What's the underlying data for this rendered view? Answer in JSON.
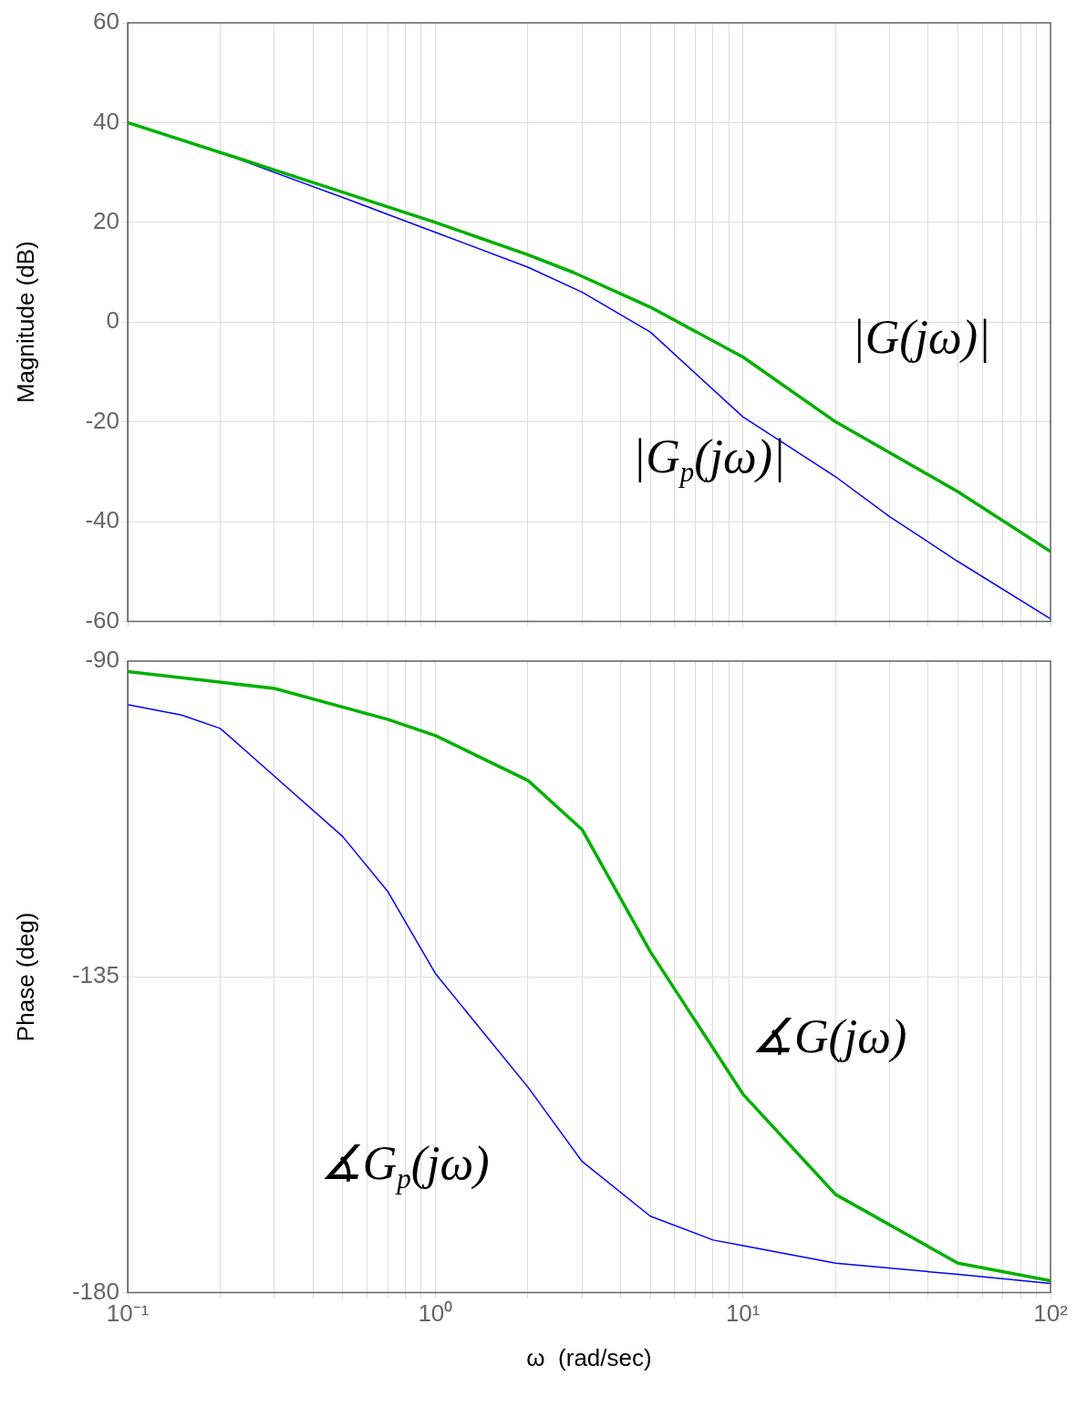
{
  "chart_data": [
    {
      "type": "line",
      "ylabel": "Magnitude (dB)",
      "log": "x",
      "grid": true,
      "tick_labels": "y",
      "xlim": [
        0.1,
        100
      ],
      "ylim": [
        -60,
        60
      ],
      "yticks": [
        -60,
        -40,
        -20,
        0,
        20,
        40,
        60
      ],
      "xticks": [
        {
          "value": 0.1,
          "label": null
        },
        {
          "value": 0.2,
          "label": null
        },
        {
          "value": 0.3,
          "label": null
        },
        {
          "value": 0.4,
          "label": null
        },
        {
          "value": 0.5,
          "label": null
        },
        {
          "value": 0.6,
          "label": null
        },
        {
          "value": 0.7,
          "label": null
        },
        {
          "value": 0.8,
          "label": null
        },
        {
          "value": 0.9,
          "label": null
        },
        {
          "value": 1,
          "label": null
        },
        {
          "value": 2,
          "label": null
        },
        {
          "value": 3,
          "label": null
        },
        {
          "value": 4,
          "label": null
        },
        {
          "value": 5,
          "label": null
        },
        {
          "value": 6,
          "label": null
        },
        {
          "value": 7,
          "label": null
        },
        {
          "value": 8,
          "label": null
        },
        {
          "value": 9,
          "label": null
        },
        {
          "value": 10,
          "label": null
        },
        {
          "value": 20,
          "label": null
        },
        {
          "value": 30,
          "label": null
        },
        {
          "value": 40,
          "label": null
        },
        {
          "value": 50,
          "label": null
        },
        {
          "value": 60,
          "label": null
        },
        {
          "value": 70,
          "label": null
        },
        {
          "value": 80,
          "label": null
        },
        {
          "value": 90,
          "label": null
        },
        {
          "value": 100,
          "label": null
        }
      ],
      "series": [
        {
          "color": "#00b000",
          "x": [
            0.1,
            0.3,
            1,
            2,
            2.8,
            5,
            10,
            20,
            50,
            100
          ],
          "values": [
            40,
            30.5,
            20,
            13.5,
            10,
            3,
            -7,
            -20,
            -34,
            -46
          ]
        },
        {
          "color": "#0000ff",
          "x": [
            0.1,
            0.2,
            0.3,
            0.5,
            1,
            2,
            3,
            5,
            10,
            20,
            30,
            50,
            100
          ],
          "values": [
            40,
            34,
            30,
            25,
            18,
            11,
            6,
            -2,
            -19,
            -31,
            -39,
            -48,
            -59.5
          ]
        }
      ],
      "annotations": [
        "|G(jω)|",
        "|G$_{p}$(jω)|"
      ]
    },
    {
      "type": "line",
      "xlabel": "ω  (rad/sec)",
      "ylabel": "Phase (deg)",
      "log": "x",
      "grid": true,
      "xlim": [
        0.1,
        100
      ],
      "ylim": [
        -180,
        -90
      ],
      "yticks": [
        -180,
        -135,
        -90
      ],
      "xticks": [
        {
          "value": 0.1,
          "label": "10⁻¹"
        },
        {
          "value": 0.2,
          "label": null
        },
        {
          "value": 0.3,
          "label": null
        },
        {
          "value": 0.4,
          "label": null
        },
        {
          "value": 0.5,
          "label": null
        },
        {
          "value": 0.6,
          "label": null
        },
        {
          "value": 0.7,
          "label": null
        },
        {
          "value": 0.8,
          "label": null
        },
        {
          "value": 0.9,
          "label": null
        },
        {
          "value": 1,
          "label": "10⁰"
        },
        {
          "value": 2,
          "label": null
        },
        {
          "value": 3,
          "label": null
        },
        {
          "value": 4,
          "label": null
        },
        {
          "value": 5,
          "label": null
        },
        {
          "value": 6,
          "label": null
        },
        {
          "value": 7,
          "label": null
        },
        {
          "value": 8,
          "label": null
        },
        {
          "value": 9,
          "label": null
        },
        {
          "value": 10,
          "label": "10¹"
        },
        {
          "value": 20,
          "label": null
        },
        {
          "value": 30,
          "label": null
        },
        {
          "value": 40,
          "label": null
        },
        {
          "value": 50,
          "label": null
        },
        {
          "value": 60,
          "label": null
        },
        {
          "value": 70,
          "label": null
        },
        {
          "value": 80,
          "label": null
        },
        {
          "value": 90,
          "label": null
        },
        {
          "value": 100,
          "label": "10²"
        }
      ],
      "series": [
        {
          "color": "#00b000",
          "x": [
            0.1,
            0.3,
            0.7,
            1,
            2,
            3,
            5,
            10,
            20,
            50,
            100
          ],
          "values": [
            -91.5,
            -93.9,
            -98.3,
            -100.6,
            -107,
            -114,
            -131.4,
            -151.7,
            -166,
            -175.8,
            -178.3
          ]
        },
        {
          "color": "#0000ff",
          "x": [
            0.1,
            0.15,
            0.2,
            0.3,
            0.5,
            0.7,
            1,
            1.5,
            2,
            3,
            5,
            8,
            10,
            20,
            50,
            100
          ],
          "values": [
            -96.2,
            -97.7,
            -99.6,
            -106.4,
            -115,
            -122.8,
            -134.5,
            -144,
            -150.7,
            -161.3,
            -169.1,
            -172.5,
            -173.3,
            -175.8,
            -177.4,
            -178.7
          ]
        }
      ],
      "annotations": [
        "∡G(jω)",
        "∡G$_{p}$(jω)"
      ]
    }
  ]
}
